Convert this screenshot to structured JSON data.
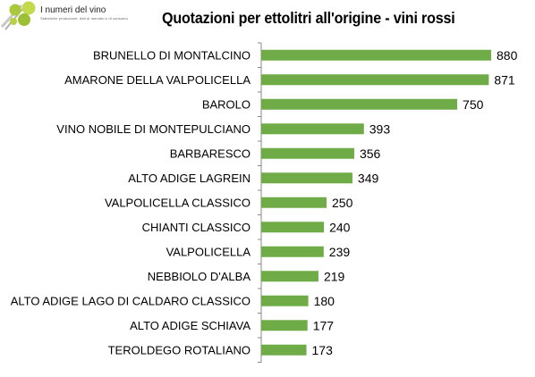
{
  "logo": {
    "name": "I numeri del vino",
    "tagline": "Statistiche produzione, dati di mercato e di consumo"
  },
  "chart_data": {
    "type": "bar",
    "orientation": "horizontal",
    "title": "Quotazioni per ettolitri all'origine - vini rossi",
    "xlabel": "",
    "ylabel": "",
    "categories": [
      "BRUNELLO DI MONTALCINO",
      "AMARONE DELLA VALPOLICELLA",
      "BAROLO",
      "VINO NOBILE DI MONTEPULCIANO",
      "BARBARESCO",
      "ALTO ADIGE LAGREIN",
      "VALPOLICELLA CLASSICO",
      "CHIANTI CLASSICO",
      "VALPOLICELLA",
      "NEBBIOLO D'ALBA",
      "ALTO ADIGE LAGO DI CALDARO CLASSICO",
      "ALTO ADIGE SCHIAVA",
      "TEROLDEGO ROTALIANO"
    ],
    "values": [
      880,
      871,
      750,
      393,
      356,
      349,
      250,
      240,
      239,
      219,
      180,
      177,
      173
    ],
    "xlim": [
      0,
      880
    ],
    "grid": false,
    "legend": "none",
    "bar_color": "#6fab46"
  }
}
